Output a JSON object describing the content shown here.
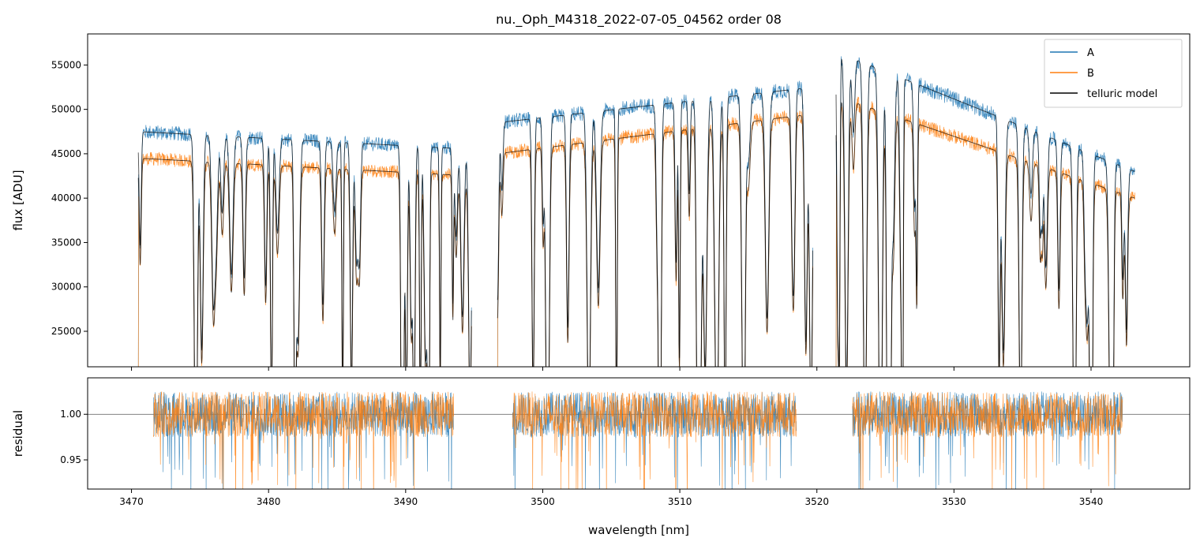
{
  "chart_data": [
    {
      "type": "line",
      "panel": "top",
      "title": "nu._Oph_M4318_2022-07-05_04562  order 08",
      "xlabel": "",
      "ylabel": "flux [ADU]",
      "xlim": [
        3466.8,
        3547.2
      ],
      "ylim": [
        21000,
        58500
      ],
      "yticks": [
        25000,
        30000,
        35000,
        40000,
        45000,
        50000,
        55000
      ],
      "ytick_labels": [
        "25000",
        "30000",
        "35000",
        "40000",
        "45000",
        "50000",
        "55000"
      ],
      "xticks": [
        3470,
        3480,
        3490,
        3500,
        3510,
        3520,
        3530,
        3540
      ],
      "legend": {
        "position": "top-right",
        "entries": [
          "A",
          "B",
          "telluric model"
        ]
      },
      "colors": {
        "A": "#1f77b4",
        "B": "#ff7f0e",
        "telluric model": "#000000"
      },
      "segments": [
        {
          "x": [
            3470.5,
            3494.8
          ],
          "A_level": [
            47500,
            45500
          ],
          "B_level": [
            44500,
            42500
          ]
        },
        {
          "x": [
            3496.7,
            3519.7
          ],
          "A_level": [
            48500,
            52500
          ],
          "B_level": [
            45000,
            49500
          ]
        },
        {
          "x": [
            3521.4,
            3543.2
          ],
          "A_level": [
            56500,
            43000
          ],
          "B_level": [
            51500,
            40000
          ]
        }
      ],
      "series": [
        {
          "name": "A"
        },
        {
          "name": "B"
        },
        {
          "name": "telluric model"
        }
      ]
    },
    {
      "type": "line",
      "panel": "bottom",
      "xlabel": "wavelength [nm]",
      "ylabel": "residual",
      "xlim": [
        3466.8,
        3547.2
      ],
      "ylim": [
        0.918,
        1.04
      ],
      "yticks": [
        0.95,
        1.0
      ],
      "ytick_labels": [
        "0.95",
        "1.00"
      ],
      "xticks": [
        3470,
        3480,
        3490,
        3500,
        3510,
        3520,
        3530,
        3540
      ],
      "xtick_labels": [
        "3470",
        "3480",
        "3490",
        "3500",
        "3510",
        "3520",
        "3530",
        "3540"
      ],
      "reference_line": 1.0,
      "segments": [
        {
          "x": [
            3471.6,
            3493.5
          ]
        },
        {
          "x": [
            3497.8,
            3518.5
          ]
        },
        {
          "x": [
            3522.6,
            3542.3
          ]
        }
      ],
      "series": [
        {
          "name": "A"
        },
        {
          "name": "B"
        }
      ]
    }
  ]
}
